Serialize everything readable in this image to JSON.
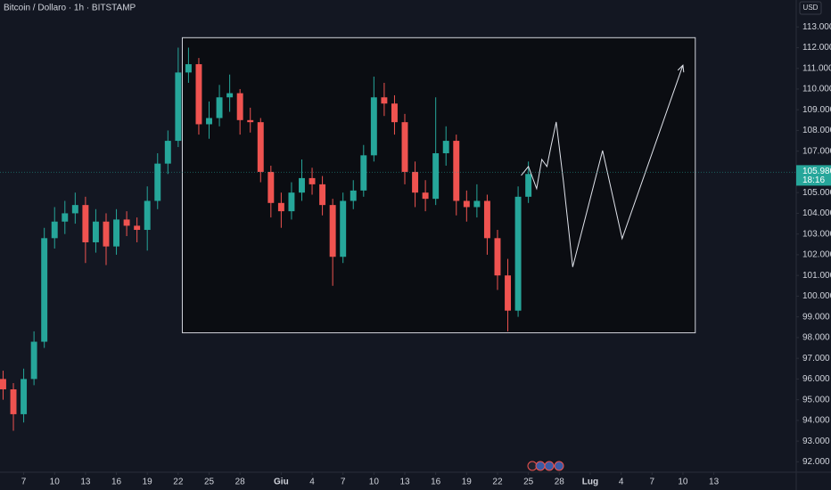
{
  "chart_data": {
    "type": "candlestick",
    "title": "Bitcoin / Dollaro · 1h · BITSTAMP",
    "currency": "USD",
    "up_color": "#26a69a",
    "down_color": "#ef5350",
    "x": [
      -2,
      -1,
      0,
      1,
      2,
      3,
      4,
      5,
      6,
      7,
      8,
      9,
      10,
      11,
      12,
      13,
      14,
      15,
      16,
      17,
      18,
      19,
      20,
      21,
      22,
      23,
      24,
      25,
      26,
      27,
      28,
      29,
      30,
      31,
      32,
      33,
      34,
      35,
      36,
      37,
      38,
      39,
      40,
      41,
      42,
      43,
      44,
      45,
      46,
      47,
      48,
      49
    ],
    "open": [
      96000,
      95500,
      94300,
      96000,
      97800,
      102800,
      103600,
      104000,
      104400,
      102600,
      103600,
      102400,
      103700,
      103400,
      103200,
      104600,
      106400,
      107500,
      110800,
      111200,
      108300,
      108600,
      109600,
      109800,
      108500,
      108400,
      106000,
      104500,
      104100,
      105000,
      105700,
      105400,
      104400,
      101900,
      104600,
      105100,
      106800,
      109600,
      109300,
      108400,
      106000,
      105000,
      104700,
      106900,
      107500,
      104600,
      104300,
      104600,
      102800,
      101000,
      99300,
      104800
    ],
    "high": [
      96400,
      95800,
      96500,
      98300,
      103300,
      104300,
      104600,
      105000,
      104800,
      104200,
      104000,
      104200,
      104100,
      103800,
      105300,
      106900,
      108000,
      112000,
      112000,
      111500,
      109400,
      110200,
      110700,
      110000,
      109100,
      108600,
      106300,
      105000,
      105500,
      106600,
      106200,
      105800,
      104700,
      105000,
      105600,
      107300,
      110600,
      110300,
      109700,
      108800,
      106500,
      105600,
      109600,
      108200,
      107800,
      105100,
      105400,
      104900,
      103200,
      101800,
      105300,
      106500
    ],
    "low": [
      95000,
      93500,
      93900,
      95700,
      97500,
      102300,
      103000,
      103500,
      101600,
      102100,
      101500,
      102000,
      102900,
      102600,
      102200,
      104200,
      105900,
      107200,
      110300,
      107800,
      107600,
      108200,
      108900,
      107800,
      107900,
      105500,
      103800,
      103300,
      103700,
      104600,
      104900,
      103900,
      100500,
      101600,
      104200,
      104800,
      106500,
      108700,
      107800,
      105400,
      104300,
      104100,
      104400,
      106300,
      103900,
      103600,
      103800,
      102000,
      100300,
      98300,
      99000,
      104500
    ],
    "close": [
      95500,
      94300,
      96000,
      97800,
      102800,
      103600,
      104000,
      104400,
      102600,
      103600,
      102400,
      103700,
      103400,
      103200,
      104600,
      106400,
      107500,
      110800,
      111200,
      108300,
      108600,
      109600,
      109800,
      108500,
      108400,
      106000,
      104500,
      104100,
      105000,
      105700,
      105400,
      104400,
      101900,
      104600,
      105100,
      106800,
      109600,
      109300,
      108400,
      106000,
      105000,
      104700,
      106900,
      107500,
      104600,
      104300,
      104600,
      102800,
      101000,
      99300,
      104800,
      105900
    ],
    "xlim": [
      -2.3,
      75
    ],
    "ylim": [
      91500,
      114300
    ],
    "xticks": [
      {
        "value": 0,
        "label": "7"
      },
      {
        "value": 3,
        "label": "10"
      },
      {
        "value": 6,
        "label": "13"
      },
      {
        "value": 9,
        "label": "16"
      },
      {
        "value": 12,
        "label": "19"
      },
      {
        "value": 15,
        "label": "22"
      },
      {
        "value": 18,
        "label": "25"
      },
      {
        "value": 21,
        "label": "28"
      },
      {
        "value": 25,
        "label": "Giu"
      },
      {
        "value": 28,
        "label": "4"
      },
      {
        "value": 31,
        "label": "7"
      },
      {
        "value": 34,
        "label": "10"
      },
      {
        "value": 37,
        "label": "13"
      },
      {
        "value": 40,
        "label": "16"
      },
      {
        "value": 43,
        "label": "19"
      },
      {
        "value": 46,
        "label": "22"
      },
      {
        "value": 49,
        "label": "25"
      },
      {
        "value": 52,
        "label": "28"
      },
      {
        "value": 55,
        "label": "Lug"
      },
      {
        "value": 58,
        "label": "4"
      },
      {
        "value": 61,
        "label": "7"
      },
      {
        "value": 64,
        "label": "10"
      },
      {
        "value": 67,
        "label": "13"
      }
    ],
    "yticks": [
      {
        "value": 92000,
        "label": "92.000"
      },
      {
        "value": 93000,
        "label": "93.000"
      },
      {
        "value": 94000,
        "label": "94.000"
      },
      {
        "value": 95000,
        "label": "95.000"
      },
      {
        "value": 96000,
        "label": "96.000"
      },
      {
        "value": 97000,
        "label": "97.000"
      },
      {
        "value": 98000,
        "label": "98.000"
      },
      {
        "value": 99000,
        "label": "99.000"
      },
      {
        "value": 100000,
        "label": "100.000"
      },
      {
        "value": 101000,
        "label": "101.000"
      },
      {
        "value": 102000,
        "label": "102.000"
      },
      {
        "value": 103000,
        "label": "103.000"
      },
      {
        "value": 104000,
        "label": "104.000"
      },
      {
        "value": 105000,
        "label": "105.000"
      },
      {
        "value": 106000,
        "label": "106.000"
      },
      {
        "value": 107000,
        "label": "107.000"
      },
      {
        "value": 108000,
        "label": "108.000"
      },
      {
        "value": 109000,
        "label": "109.000"
      },
      {
        "value": 110000,
        "label": "110.000"
      },
      {
        "value": 111000,
        "label": "111.000"
      },
      {
        "value": 112000,
        "label": "112.000"
      },
      {
        "value": 113000,
        "label": "113.000"
      }
    ],
    "last_price": {
      "value": 105980,
      "label": "105.980"
    },
    "countdown": "18:16",
    "range_box": {
      "xlim": [
        15.4,
        65.2
      ],
      "ylim": [
        98230,
        112480
      ]
    },
    "projection": {
      "x": [
        48.3,
        49.0,
        49.8,
        50.3,
        50.8,
        51.2,
        51.7,
        52.4,
        53.3,
        56.2,
        58.1,
        64.0
      ],
      "values": [
        105830,
        106260,
        105190,
        106600,
        106260,
        107250,
        108410,
        105530,
        101410,
        107030,
        102780,
        111150
      ]
    }
  }
}
